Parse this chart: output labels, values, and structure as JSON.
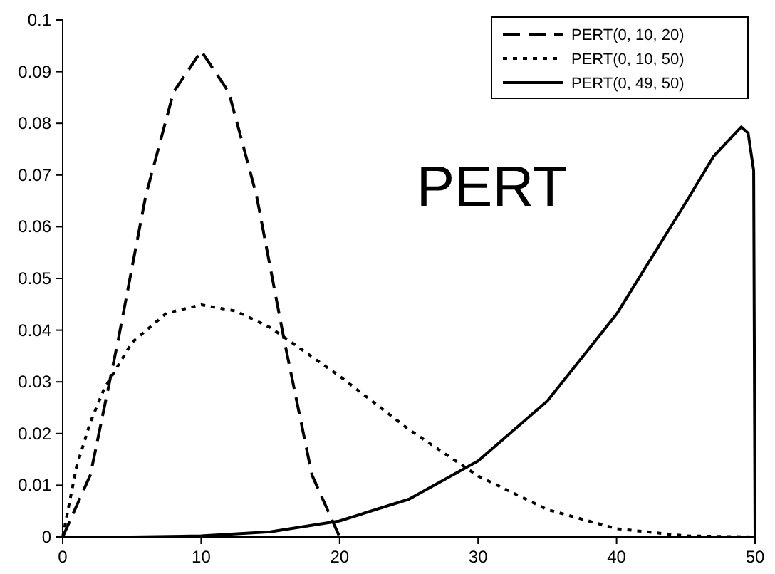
{
  "chart_data": {
    "type": "line",
    "xlim": [
      0,
      50
    ],
    "xticks": [
      0,
      10,
      20,
      30,
      40,
      50
    ],
    "ylim": [
      0,
      0.1
    ],
    "yticks": [
      0,
      0.01,
      0.02,
      0.03,
      0.04,
      0.05,
      0.06,
      0.07,
      0.08,
      0.09,
      0.1
    ],
    "grid": false,
    "legend": "top right",
    "marker": "none",
    "annotations": [
      "PERT"
    ],
    "series": [
      {
        "name": "PERT(0, 10, 20)",
        "color": "#000000",
        "line_style": "dashed",
        "x": [
          0,
          2,
          4,
          6,
          8,
          10,
          12,
          14,
          16,
          18,
          20
        ],
        "values": [
          0,
          0.012,
          0.038,
          0.066,
          0.086,
          0.094,
          0.086,
          0.066,
          0.038,
          0.012,
          0
        ]
      },
      {
        "name": "PERT(0, 10, 50)",
        "color": "#000000",
        "line_style": "dotted",
        "x": [
          0,
          1,
          2,
          3,
          5,
          7.5,
          10,
          12.5,
          15,
          20,
          25,
          30,
          35,
          40,
          45,
          50
        ],
        "values": [
          0,
          0.0136,
          0.0222,
          0.0287,
          0.0376,
          0.0433,
          0.0449,
          0.0437,
          0.0405,
          0.0311,
          0.0208,
          0.0118,
          0.0053,
          0.0016,
          0.0002,
          0
        ]
      },
      {
        "name": "PERT(0, 49, 50)",
        "color": "#000000",
        "line_style": "solid",
        "x": [
          0,
          5,
          10,
          15,
          20,
          25,
          30,
          35,
          40,
          45,
          47,
          49,
          49.5,
          49.9,
          50
        ],
        "values": [
          0,
          0,
          0.0002,
          0.001,
          0.0031,
          0.0073,
          0.0147,
          0.0263,
          0.0431,
          0.0647,
          0.0736,
          0.0793,
          0.0781,
          0.0709,
          0
        ]
      }
    ]
  }
}
